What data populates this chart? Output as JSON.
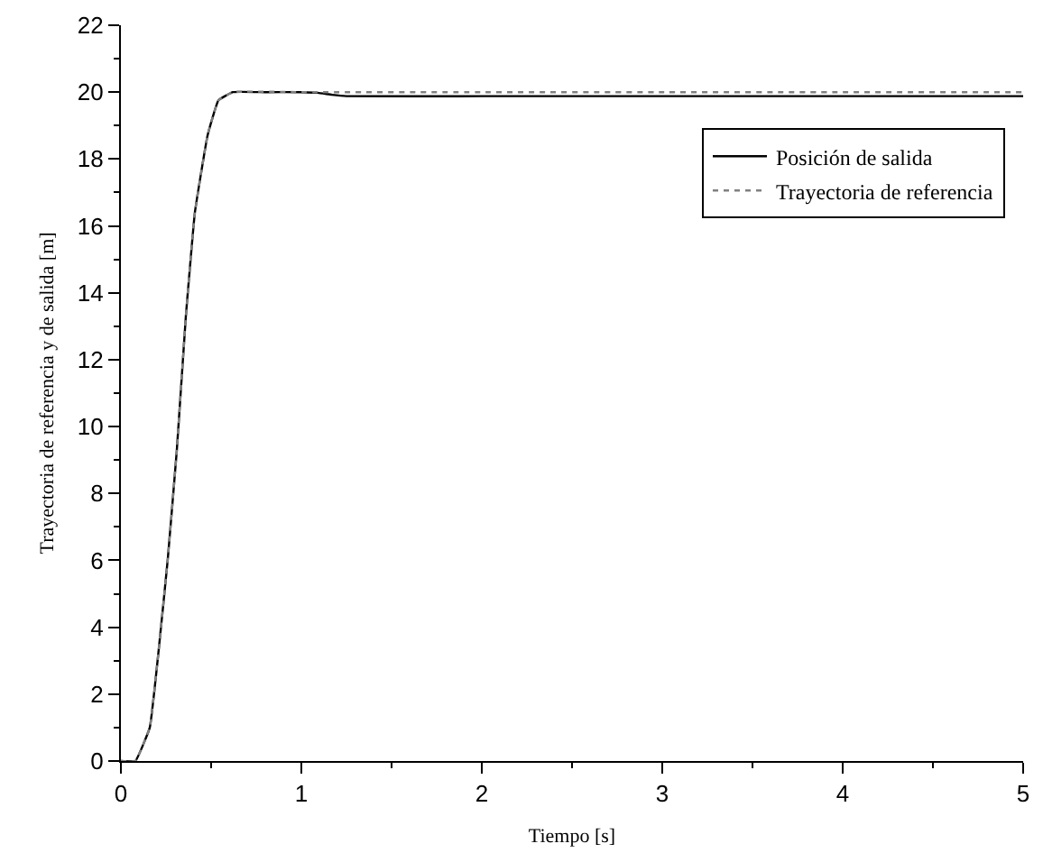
{
  "chart_data": {
    "type": "line",
    "xlabel": "Tiempo [s]",
    "ylabel": "Trayectoria de referencia y de salida [m]",
    "xlim": [
      0,
      5
    ],
    "xticks": [
      0,
      1,
      2,
      3,
      4,
      5
    ],
    "ylim": [
      0,
      22
    ],
    "yticks": [
      0,
      2,
      4,
      6,
      8,
      10,
      12,
      14,
      16,
      18,
      20,
      22
    ],
    "legend": "top right",
    "series": [
      {
        "name": "Posición de salida",
        "color": "#000000",
        "line_style": "solid",
        "x": [
          0,
          0.08,
          0.16,
          0.21,
          0.26,
          0.31,
          0.36,
          0.41,
          0.48,
          0.54,
          0.62,
          0.8,
          1.0,
          1.09,
          1.17,
          1.25,
          2,
          3,
          4,
          5
        ],
        "values": [
          0,
          0,
          1.0,
          3.35,
          6.05,
          9.3,
          13.3,
          16.4,
          18.7,
          19.75,
          20,
          20,
          20,
          19.98,
          19.92,
          19.88,
          19.88,
          19.88,
          19.88,
          19.88
        ]
      },
      {
        "name": "Trayectoria de referencia",
        "color": "#808080",
        "line_style": "dotted",
        "x": [
          0,
          0.08,
          0.16,
          0.21,
          0.26,
          0.31,
          0.36,
          0.41,
          0.48,
          0.54,
          0.62,
          1,
          2,
          3,
          4,
          5
        ],
        "values": [
          0,
          0,
          1.0,
          3.35,
          6.05,
          9.3,
          13.3,
          16.4,
          18.7,
          19.75,
          20,
          20,
          20,
          20,
          20,
          20
        ]
      }
    ]
  }
}
